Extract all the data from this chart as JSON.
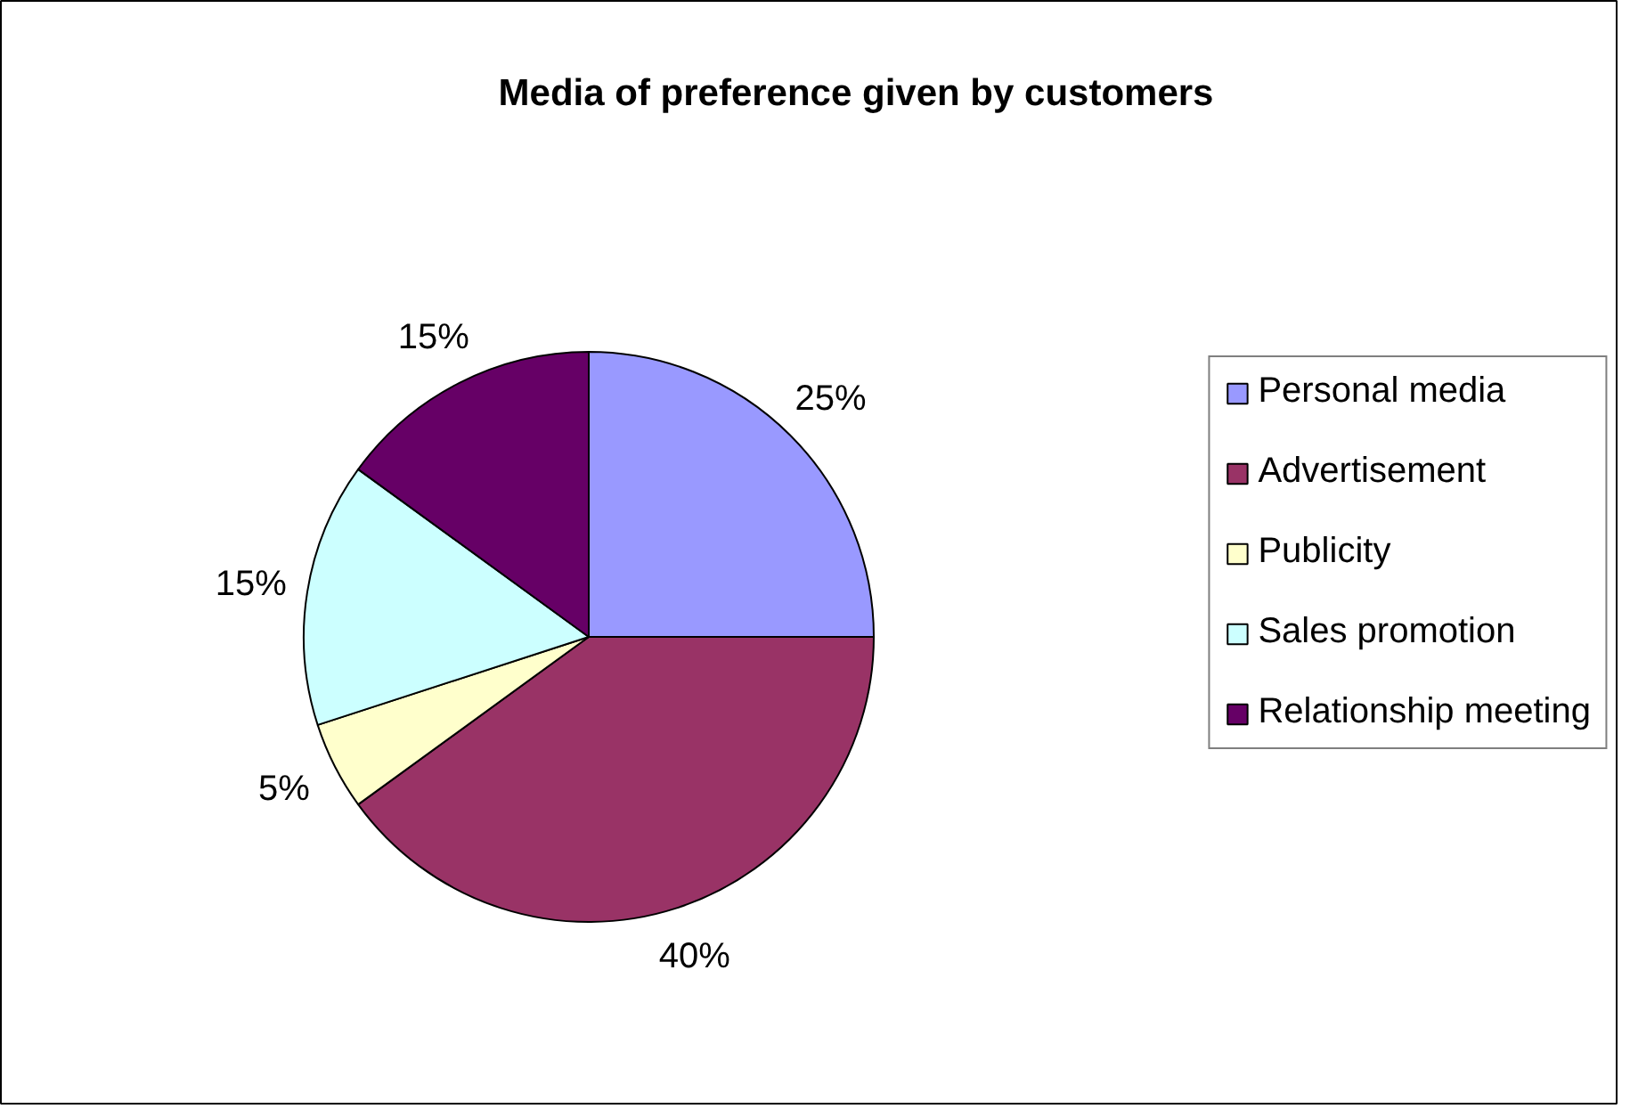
{
  "chart_data": {
    "type": "pie",
    "title": "Media of preference given by customers",
    "categories": [
      "Personal media",
      "Advertisement",
      "Publicity",
      "Sales promotion",
      "Relationship meeting"
    ],
    "values": [
      25,
      40,
      5,
      15,
      15
    ],
    "colors": [
      "#9999ff",
      "#993366",
      "#ffffcc",
      "#ccffff",
      "#660066"
    ],
    "value_labels": [
      "25%",
      "40%",
      "5%",
      "15%",
      "15%"
    ],
    "legend": "right"
  }
}
